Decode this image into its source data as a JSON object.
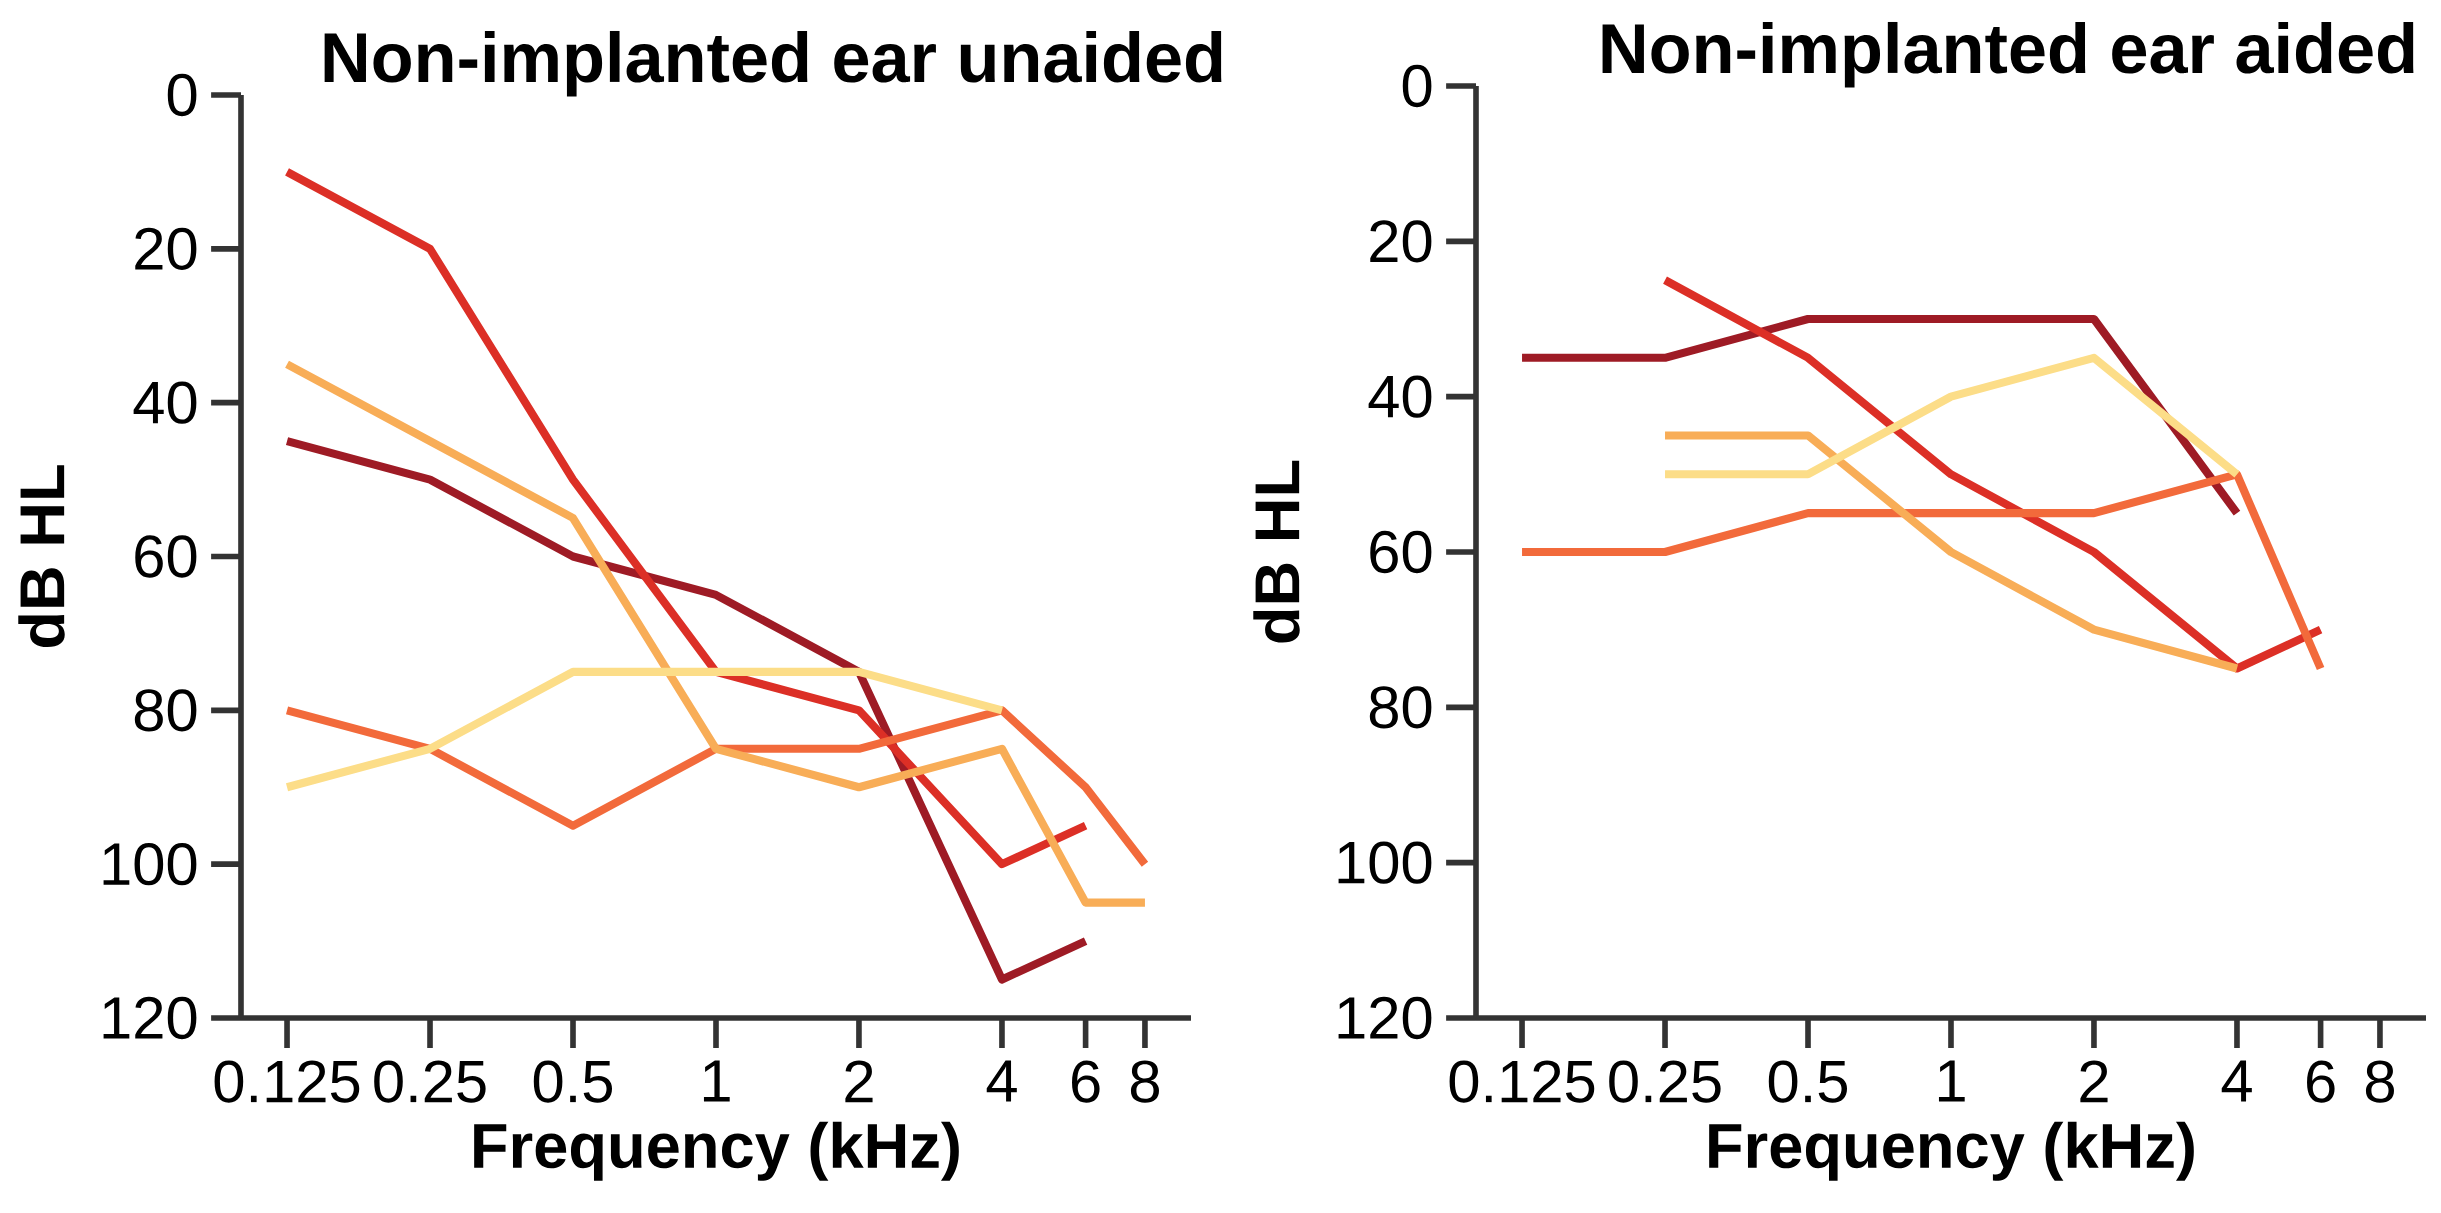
{
  "chart_data": [
    {
      "type": "line",
      "title": "Non-implanted ear unaided",
      "xlabel": "Frequency (kHz)",
      "ylabel": "dB HL",
      "log": "x",
      "xlim": [
        0.1,
        10
      ],
      "xticks": [
        0.125,
        0.25,
        0.5,
        1,
        2,
        4,
        6,
        8
      ],
      "ylim": [
        120,
        0
      ],
      "yticks": [
        0,
        20,
        40,
        60,
        80,
        100,
        120
      ],
      "grid": false,
      "marker": "none",
      "line_style": "solid",
      "series": [
        {
          "color": "#9e1b25",
          "x": [
            0.125,
            0.25,
            0.5,
            1,
            2,
            4,
            6
          ],
          "values": [
            45,
            50,
            60,
            65,
            75,
            115,
            110
          ]
        },
        {
          "color": "#dc2f26",
          "x": [
            0.125,
            0.25,
            0.5,
            1,
            2,
            4,
            6
          ],
          "values": [
            10,
            20,
            50,
            75,
            80,
            100,
            95
          ]
        },
        {
          "color": "#f26a3b",
          "x": [
            0.125,
            0.25,
            0.5,
            1,
            2,
            4,
            6,
            8
          ],
          "values": [
            80,
            85,
            95,
            85,
            85,
            80,
            90,
            100
          ]
        },
        {
          "color": "#f8ad57",
          "x": [
            0.125,
            0.25,
            0.5,
            1,
            2,
            4,
            6,
            8
          ],
          "values": [
            35,
            45,
            55,
            85,
            90,
            85,
            105,
            105
          ]
        },
        {
          "color": "#fcdd88",
          "x": [
            0.125,
            0.25,
            0.5,
            1,
            2,
            4
          ],
          "values": [
            90,
            85,
            75,
            75,
            75,
            80
          ]
        }
      ]
    },
    {
      "type": "line",
      "title": "Non-implanted ear aided",
      "xlabel": "Frequency (kHz)",
      "ylabel": "dB HL",
      "log": "x",
      "xlim": [
        0.1,
        10
      ],
      "xticks": [
        0.125,
        0.25,
        0.5,
        1,
        2,
        4,
        6,
        8
      ],
      "ylim": [
        120,
        0
      ],
      "yticks": [
        0,
        20,
        40,
        60,
        80,
        100,
        120
      ],
      "grid": false,
      "marker": "none",
      "line_style": "solid",
      "series": [
        {
          "color": "#9e1b25",
          "x": [
            0.125,
            0.25,
            0.5,
            1,
            2,
            4
          ],
          "values": [
            35,
            35,
            30,
            30,
            30,
            55
          ]
        },
        {
          "color": "#dc2f26",
          "x": [
            0.25,
            0.5,
            1,
            2,
            4,
            6
          ],
          "values": [
            25,
            35,
            50,
            60,
            75,
            70
          ]
        },
        {
          "color": "#f26a3b",
          "x": [
            0.125,
            0.25,
            0.5,
            1,
            2,
            4,
            6
          ],
          "values": [
            60,
            60,
            55,
            55,
            55,
            50,
            75
          ]
        },
        {
          "color": "#f8ad57",
          "x": [
            0.25,
            0.5,
            1,
            2,
            4
          ],
          "values": [
            45,
            45,
            60,
            70,
            75
          ]
        },
        {
          "color": "#fcdd88",
          "x": [
            0.25,
            0.5,
            1,
            2,
            4
          ],
          "values": [
            50,
            50,
            40,
            35,
            50
          ]
        }
      ]
    }
  ]
}
